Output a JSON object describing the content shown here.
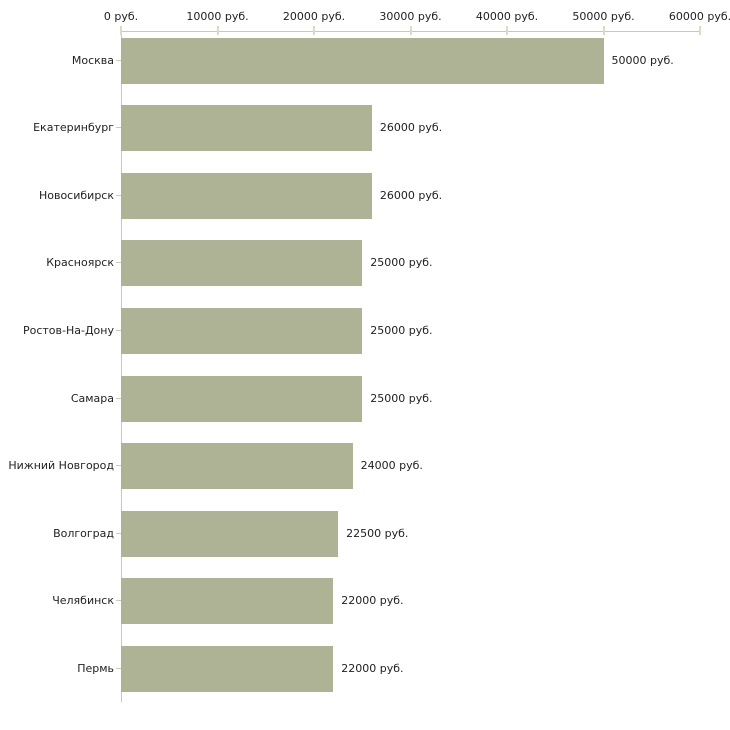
{
  "chart_data": {
    "type": "bar",
    "orientation": "horizontal",
    "title": "",
    "xlabel": "",
    "ylabel": "",
    "unit": "руб.",
    "grid": false,
    "legend": null,
    "xlim": [
      0,
      60000
    ],
    "xtick_step": 10000,
    "x_tick_labels": [
      "0 руб.",
      "10000 руб.",
      "20000 руб.",
      "30000 руб.",
      "40000 руб.",
      "50000 руб.",
      "60000 руб."
    ],
    "categories": [
      "Москва",
      "Екатеринбург",
      "Новосибирск",
      "Красноярск",
      "Ростов-На-Дону",
      "Самара",
      "Нижний Новгород",
      "Волгоград",
      "Челябинск",
      "Пермь"
    ],
    "values": [
      50000,
      26000,
      26000,
      25000,
      25000,
      25000,
      24000,
      22500,
      22000,
      22000
    ],
    "value_labels": [
      "50000 руб.",
      "26000 руб.",
      "26000 руб.",
      "25000 руб.",
      "25000 руб.",
      "25000 руб.",
      "24000 руб.",
      "22500 руб.",
      "22000 руб.",
      "22000 руб."
    ],
    "colors": {
      "bar": "#adb394",
      "axis_line": "#c6c6c6",
      "tick_mark": "#d8dcc2",
      "category_tick": "#c9cdb4",
      "text": "#222222",
      "background": "#ffffff"
    }
  }
}
